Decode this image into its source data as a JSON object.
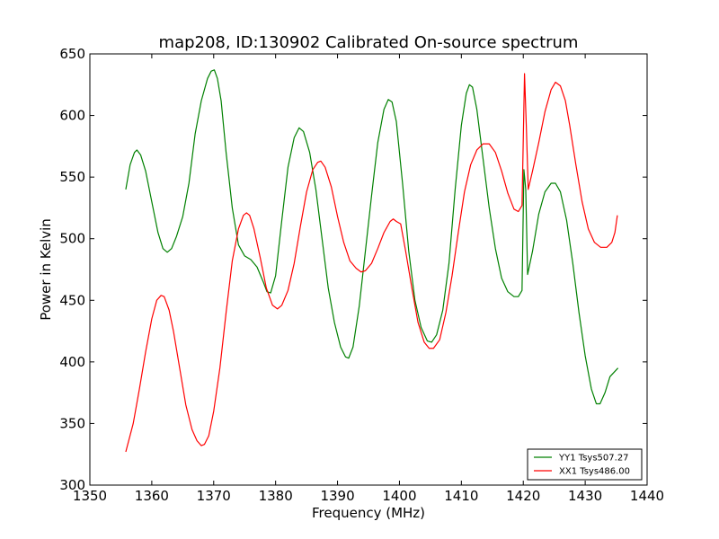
{
  "chart_data": {
    "type": "line",
    "title": "map208, ID:130902 Calibrated On-source spectrum",
    "xlabel": "Frequency (MHz)",
    "ylabel": "Power in Kelvin",
    "xlim": [
      1350,
      1440
    ],
    "ylim": [
      300,
      650
    ],
    "xticks": [
      1350,
      1360,
      1370,
      1380,
      1390,
      1400,
      1410,
      1420,
      1430,
      1440
    ],
    "yticks": [
      300,
      350,
      400,
      450,
      500,
      550,
      600,
      650
    ],
    "grid": false,
    "legend_position": "bottom-right",
    "series": [
      {
        "name": "YY1 Tsys507.27",
        "color": "#008000",
        "points": [
          [
            1355.8,
            540
          ],
          [
            1356.5,
            560
          ],
          [
            1357.2,
            570
          ],
          [
            1357.6,
            572
          ],
          [
            1358.2,
            568
          ],
          [
            1359,
            555
          ],
          [
            1360,
            530
          ],
          [
            1361,
            505
          ],
          [
            1361.8,
            492
          ],
          [
            1362.5,
            489
          ],
          [
            1363.2,
            492
          ],
          [
            1364,
            502
          ],
          [
            1365,
            518
          ],
          [
            1366,
            545
          ],
          [
            1367,
            585
          ],
          [
            1368,
            612
          ],
          [
            1369,
            630
          ],
          [
            1369.6,
            636
          ],
          [
            1370.1,
            637
          ],
          [
            1370.6,
            630
          ],
          [
            1371.2,
            612
          ],
          [
            1372,
            570
          ],
          [
            1373,
            525
          ],
          [
            1374,
            495
          ],
          [
            1375,
            486
          ],
          [
            1376,
            483
          ],
          [
            1377,
            477
          ],
          [
            1378,
            465
          ],
          [
            1378.6,
            457
          ],
          [
            1379.2,
            456
          ],
          [
            1380,
            470
          ],
          [
            1381,
            515
          ],
          [
            1382,
            558
          ],
          [
            1383,
            582
          ],
          [
            1383.8,
            590
          ],
          [
            1384.5,
            587
          ],
          [
            1385.5,
            570
          ],
          [
            1386.5,
            540
          ],
          [
            1387.5,
            500
          ],
          [
            1388.5,
            460
          ],
          [
            1389.5,
            432
          ],
          [
            1390.5,
            412
          ],
          [
            1391.3,
            404
          ],
          [
            1391.8,
            403
          ],
          [
            1392.5,
            412
          ],
          [
            1393.5,
            445
          ],
          [
            1394.5,
            490
          ],
          [
            1395.5,
            535
          ],
          [
            1396.5,
            578
          ],
          [
            1397.5,
            605
          ],
          [
            1398.2,
            613
          ],
          [
            1398.8,
            611
          ],
          [
            1399.5,
            595
          ],
          [
            1400.5,
            545
          ],
          [
            1401.5,
            490
          ],
          [
            1402.5,
            450
          ],
          [
            1403.5,
            428
          ],
          [
            1404.5,
            417
          ],
          [
            1405.2,
            416
          ],
          [
            1406,
            422
          ],
          [
            1407,
            442
          ],
          [
            1408,
            480
          ],
          [
            1409,
            540
          ],
          [
            1410,
            592
          ],
          [
            1410.8,
            618
          ],
          [
            1411.3,
            625
          ],
          [
            1411.8,
            623
          ],
          [
            1412.5,
            605
          ],
          [
            1413.5,
            565
          ],
          [
            1414.5,
            525
          ],
          [
            1415.5,
            492
          ],
          [
            1416.5,
            468
          ],
          [
            1417.5,
            457
          ],
          [
            1418.5,
            453
          ],
          [
            1419.2,
            453
          ],
          [
            1419.8,
            458
          ],
          [
            1420.1,
            556
          ],
          [
            1420.4,
            540
          ],
          [
            1420.7,
            471
          ],
          [
            1421.5,
            490
          ],
          [
            1422.5,
            520
          ],
          [
            1423.5,
            538
          ],
          [
            1424.5,
            545
          ],
          [
            1425.2,
            545
          ],
          [
            1426,
            538
          ],
          [
            1427,
            515
          ],
          [
            1428,
            480
          ],
          [
            1429,
            440
          ],
          [
            1430,
            405
          ],
          [
            1431,
            378
          ],
          [
            1431.8,
            366
          ],
          [
            1432.4,
            366
          ],
          [
            1433.2,
            375
          ],
          [
            1434,
            388
          ],
          [
            1435.3,
            395
          ]
        ]
      },
      {
        "name": "XX1 Tsys486.00",
        "color": "#ff0000",
        "points": [
          [
            1355.8,
            327
          ],
          [
            1357,
            350
          ],
          [
            1358,
            378
          ],
          [
            1359,
            408
          ],
          [
            1360,
            435
          ],
          [
            1360.8,
            450
          ],
          [
            1361.5,
            454
          ],
          [
            1362,
            453
          ],
          [
            1362.8,
            442
          ],
          [
            1363.5,
            425
          ],
          [
            1364.5,
            395
          ],
          [
            1365.5,
            365
          ],
          [
            1366.5,
            345
          ],
          [
            1367.3,
            336
          ],
          [
            1368,
            332
          ],
          [
            1368.5,
            333
          ],
          [
            1369.2,
            340
          ],
          [
            1370,
            360
          ],
          [
            1371,
            395
          ],
          [
            1372,
            440
          ],
          [
            1373,
            482
          ],
          [
            1374,
            508
          ],
          [
            1374.8,
            519
          ],
          [
            1375.3,
            521
          ],
          [
            1375.8,
            519
          ],
          [
            1376.5,
            508
          ],
          [
            1377.5,
            485
          ],
          [
            1378.5,
            460
          ],
          [
            1379.5,
            446
          ],
          [
            1380.3,
            443
          ],
          [
            1381,
            446
          ],
          [
            1382,
            458
          ],
          [
            1383,
            480
          ],
          [
            1384,
            510
          ],
          [
            1385,
            538
          ],
          [
            1386,
            556
          ],
          [
            1386.8,
            562
          ],
          [
            1387.3,
            563
          ],
          [
            1388,
            558
          ],
          [
            1389,
            542
          ],
          [
            1390,
            518
          ],
          [
            1391,
            497
          ],
          [
            1392,
            482
          ],
          [
            1393,
            476
          ],
          [
            1393.8,
            473
          ],
          [
            1394.5,
            474
          ],
          [
            1395.5,
            480
          ],
          [
            1396.5,
            492
          ],
          [
            1397.5,
            505
          ],
          [
            1398.5,
            514
          ],
          [
            1399,
            516
          ],
          [
            1399.5,
            514
          ],
          [
            1400.2,
            512
          ],
          [
            1401,
            490
          ],
          [
            1402,
            460
          ],
          [
            1403,
            432
          ],
          [
            1404,
            416
          ],
          [
            1404.8,
            411
          ],
          [
            1405.5,
            411
          ],
          [
            1406.5,
            418
          ],
          [
            1407.5,
            440
          ],
          [
            1408.5,
            470
          ],
          [
            1409.5,
            505
          ],
          [
            1410.5,
            538
          ],
          [
            1411.5,
            560
          ],
          [
            1412.5,
            572
          ],
          [
            1413.5,
            577
          ],
          [
            1414.5,
            577
          ],
          [
            1415.5,
            570
          ],
          [
            1416.5,
            555
          ],
          [
            1417.5,
            537
          ],
          [
            1418.5,
            524
          ],
          [
            1419.2,
            522
          ],
          [
            1419.8,
            527
          ],
          [
            1420.2,
            634
          ],
          [
            1420.5,
            590
          ],
          [
            1420.8,
            540
          ],
          [
            1421.5,
            555
          ],
          [
            1422.5,
            578
          ],
          [
            1423.5,
            603
          ],
          [
            1424.5,
            621
          ],
          [
            1425.2,
            627
          ],
          [
            1426,
            624
          ],
          [
            1426.8,
            612
          ],
          [
            1427.5,
            592
          ],
          [
            1428.5,
            560
          ],
          [
            1429.5,
            530
          ],
          [
            1430.5,
            508
          ],
          [
            1431.5,
            497
          ],
          [
            1432.5,
            493
          ],
          [
            1433.5,
            493
          ],
          [
            1434.3,
            497
          ],
          [
            1434.8,
            505
          ],
          [
            1435.2,
            519
          ]
        ]
      }
    ]
  }
}
